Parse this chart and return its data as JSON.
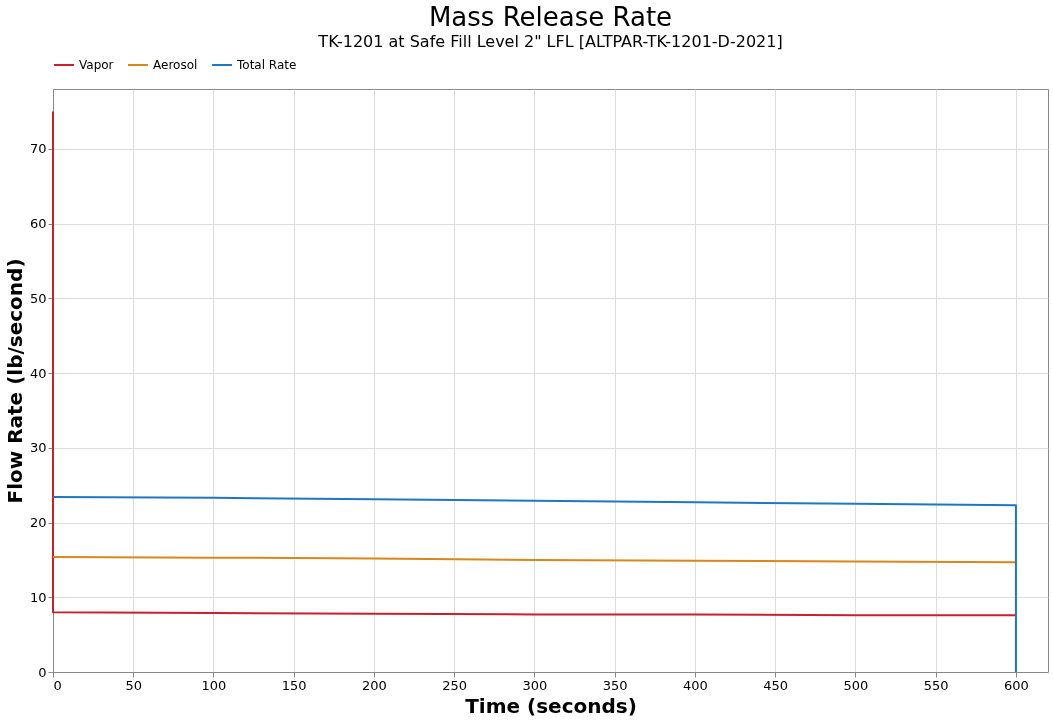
{
  "chart_data": {
    "type": "line",
    "title": "Mass Release Rate",
    "subtitle": "TK-1201 at Safe Fill Level 2\" LFL [ALTPAR-TK-1201-D-2021]",
    "xlabel": "Time (seconds)",
    "ylabel": "Flow Rate (lb/second)",
    "xlim": [
      0,
      620
    ],
    "ylim": [
      0,
      78
    ],
    "xticks": [
      0,
      50,
      100,
      150,
      200,
      250,
      300,
      350,
      400,
      450,
      500,
      550,
      600
    ],
    "yticks": [
      0,
      10,
      20,
      30,
      40,
      50,
      60,
      70
    ],
    "grid": true,
    "legend": "top left",
    "line_style": "solid",
    "series": [
      {
        "name": "Vapor",
        "color": "#c8202f",
        "x": [
          0,
          0,
          100,
          200,
          300,
          400,
          500,
          600
        ],
        "values": [
          75,
          8.0,
          7.9,
          7.8,
          7.7,
          7.7,
          7.6,
          7.6
        ]
      },
      {
        "name": "Aerosol",
        "color": "#d9861a",
        "x": [
          0,
          100,
          200,
          300,
          400,
          500,
          600
        ],
        "values": [
          15.4,
          15.3,
          15.2,
          15.0,
          14.9,
          14.8,
          14.7
        ]
      },
      {
        "name": "Total Rate",
        "color": "#1f77c4",
        "x": [
          0,
          100,
          200,
          300,
          400,
          500,
          600,
          600
        ],
        "values": [
          23.4,
          23.3,
          23.1,
          22.9,
          22.7,
          22.5,
          22.3,
          0
        ]
      }
    ]
  }
}
